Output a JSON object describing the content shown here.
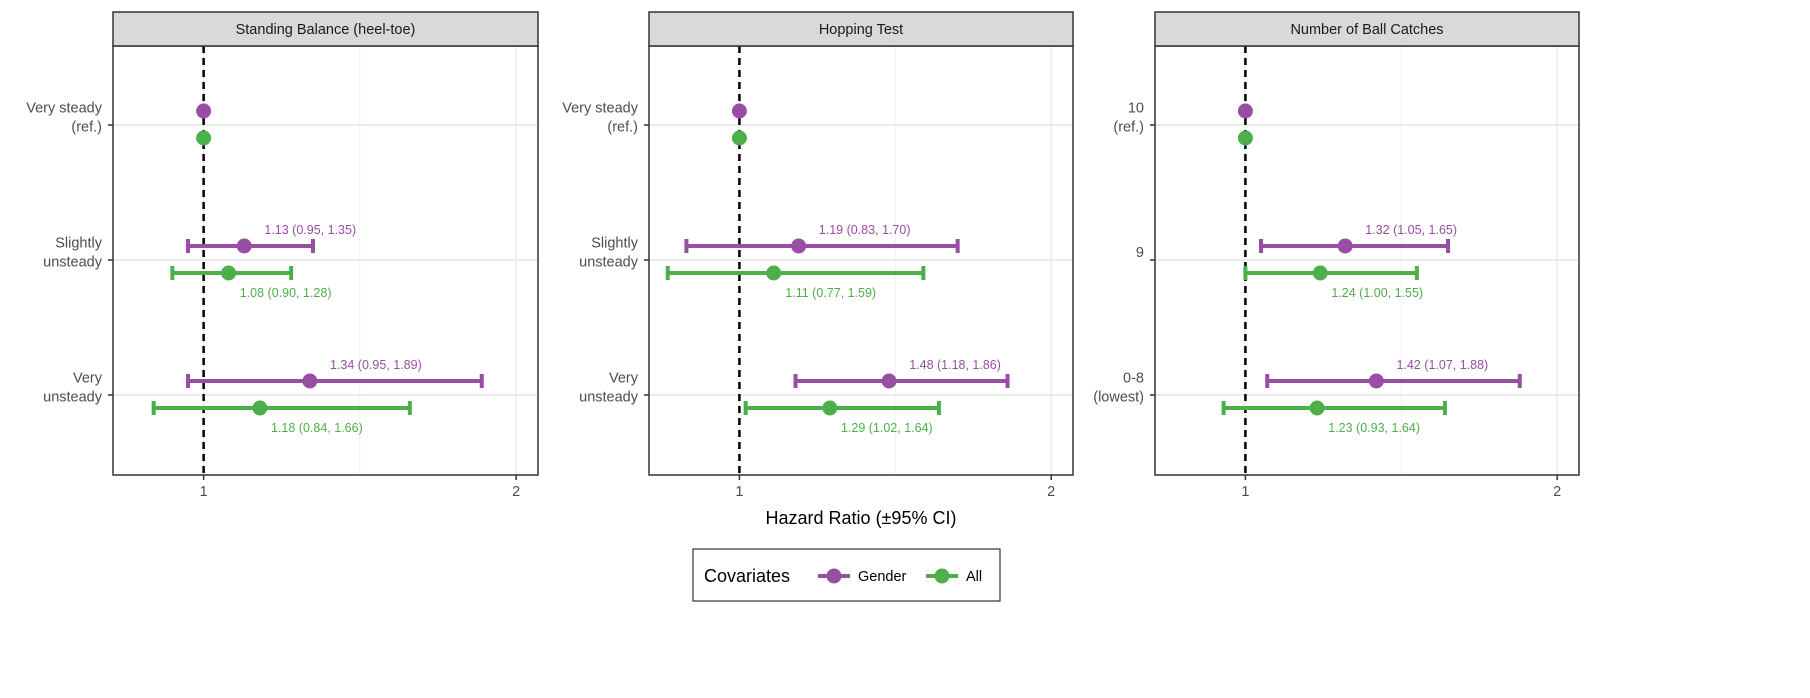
{
  "chart_data": {
    "type": "scatter",
    "subtype": "forest-plot",
    "xlabel": "Hazard Ratio (±95% CI)",
    "x_ticks": [
      "1",
      "2"
    ],
    "x_tick_values": [
      1,
      2
    ],
    "xlim": [
      0.71,
      2.07
    ],
    "reference_line": 1,
    "grid": true,
    "legend": {
      "title": "Covariates",
      "position": "bottom",
      "entries": [
        {
          "name": "Gender",
          "color": "#984ea3"
        },
        {
          "name": "All",
          "color": "#4daf4a"
        }
      ]
    },
    "panels": [
      {
        "title": "Standing Balance (heel-toe)",
        "categories": [
          [
            "Very steady",
            "(ref.)"
          ],
          [
            "Slightly",
            "unsteady"
          ],
          [
            "Very",
            "unsteady"
          ]
        ],
        "series": [
          {
            "name": "Gender",
            "values": [
              {
                "hr": 1,
                "lo": null,
                "hi": null,
                "label": ""
              },
              {
                "hr": 1.13,
                "lo": 0.95,
                "hi": 1.35,
                "label": "1.13 (0.95, 1.35)"
              },
              {
                "hr": 1.34,
                "lo": 0.95,
                "hi": 1.89,
                "label": "1.34 (0.95, 1.89)"
              }
            ]
          },
          {
            "name": "All",
            "values": [
              {
                "hr": 1,
                "lo": null,
                "hi": null,
                "label": ""
              },
              {
                "hr": 1.08,
                "lo": 0.9,
                "hi": 1.28,
                "label": "1.08 (0.90, 1.28)"
              },
              {
                "hr": 1.18,
                "lo": 0.84,
                "hi": 1.66,
                "label": "1.18 (0.84, 1.66)"
              }
            ]
          }
        ]
      },
      {
        "title": "Hopping Test",
        "categories": [
          [
            "Very steady",
            "(ref.)"
          ],
          [
            "Slightly",
            "unsteady"
          ],
          [
            "Very",
            "unsteady"
          ]
        ],
        "series": [
          {
            "name": "Gender",
            "values": [
              {
                "hr": 1,
                "lo": null,
                "hi": null,
                "label": ""
              },
              {
                "hr": 1.19,
                "lo": 0.83,
                "hi": 1.7,
                "label": "1.19 (0.83, 1.70)"
              },
              {
                "hr": 1.48,
                "lo": 1.18,
                "hi": 1.86,
                "label": "1.48 (1.18, 1.86)"
              }
            ]
          },
          {
            "name": "All",
            "values": [
              {
                "hr": 1,
                "lo": null,
                "hi": null,
                "label": ""
              },
              {
                "hr": 1.11,
                "lo": 0.77,
                "hi": 1.59,
                "label": "1.11 (0.77, 1.59)"
              },
              {
                "hr": 1.29,
                "lo": 1.02,
                "hi": 1.64,
                "label": "1.29 (1.02, 1.64)"
              }
            ]
          }
        ]
      },
      {
        "title": "Number of Ball Catches",
        "categories": [
          [
            "10",
            "(ref.)"
          ],
          [
            "9"
          ],
          [
            "0-8",
            "(lowest)"
          ]
        ],
        "series": [
          {
            "name": "Gender",
            "values": [
              {
                "hr": 1,
                "lo": null,
                "hi": null,
                "label": ""
              },
              {
                "hr": 1.32,
                "lo": 1.05,
                "hi": 1.65,
                "label": "1.32 (1.05, 1.65)"
              },
              {
                "hr": 1.42,
                "lo": 1.07,
                "hi": 1.88,
                "label": "1.42 (1.07, 1.88)"
              }
            ]
          },
          {
            "name": "All",
            "values": [
              {
                "hr": 1,
                "lo": null,
                "hi": null,
                "label": ""
              },
              {
                "hr": 1.24,
                "lo": 1.0,
                "hi": 1.55,
                "label": "1.24 (1.00, 1.55)"
              },
              {
                "hr": 1.23,
                "lo": 0.93,
                "hi": 1.64,
                "label": "1.23 (0.93, 1.64)"
              }
            ]
          }
        ]
      }
    ]
  }
}
